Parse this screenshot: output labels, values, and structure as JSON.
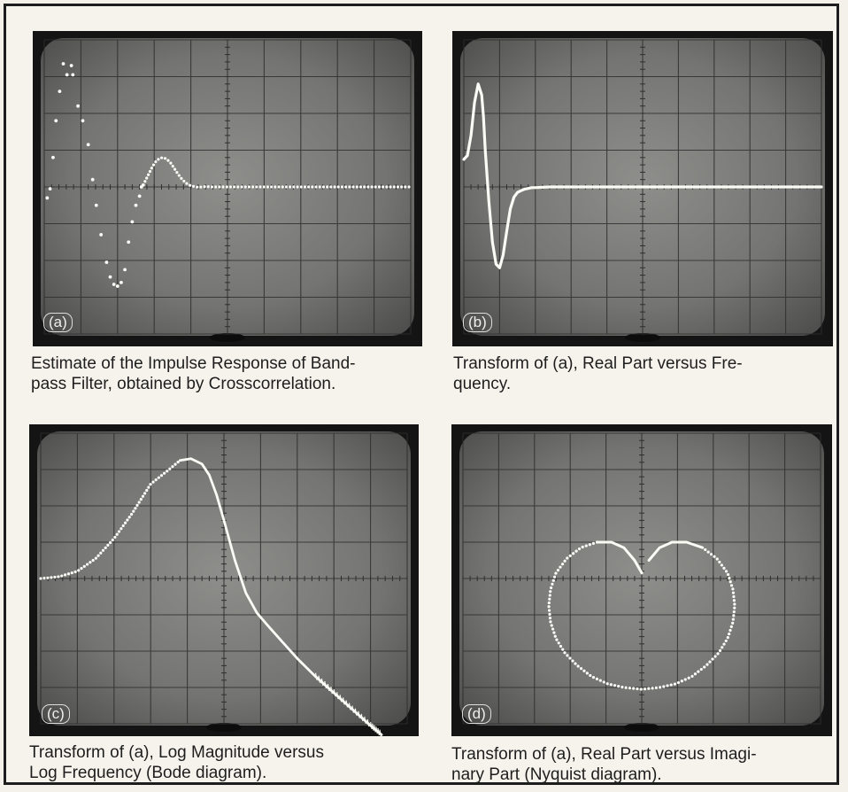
{
  "chart_data": [
    {
      "type": "scatter",
      "panel": "a",
      "label": "(a)",
      "caption": "Estimate of the Impulse Response of Band-\npass Filter, obtained by Crosscorrelation.",
      "grid": true,
      "xlim": [
        0,
        10
      ],
      "ylim": [
        -4,
        4
      ],
      "points": [
        [
          0.08,
          -0.3
        ],
        [
          0.16,
          -0.05
        ],
        [
          0.24,
          0.8
        ],
        [
          0.32,
          1.8
        ],
        [
          0.42,
          2.6
        ],
        [
          0.52,
          3.35
        ],
        [
          0.62,
          3.05
        ],
        [
          0.74,
          3.3
        ],
        [
          0.78,
          3.05
        ],
        [
          0.92,
          2.2
        ],
        [
          1.05,
          1.8
        ],
        [
          1.2,
          1.15
        ],
        [
          1.32,
          0.2
        ],
        [
          1.42,
          -0.5
        ],
        [
          1.55,
          -1.3
        ],
        [
          1.7,
          -2.05
        ],
        [
          1.8,
          -2.45
        ],
        [
          1.9,
          -2.65
        ],
        [
          2.0,
          -2.7
        ],
        [
          2.1,
          -2.6
        ],
        [
          2.2,
          -2.25
        ],
        [
          2.3,
          -1.5
        ],
        [
          2.4,
          -0.95
        ],
        [
          2.5,
          -0.5
        ],
        [
          2.6,
          -0.25
        ],
        [
          2.65,
          0.0
        ],
        [
          2.7,
          0.05
        ]
      ],
      "series": [
        {
          "x": [
            2.75,
            2.85,
            2.95,
            3.05,
            3.15,
            3.25,
            3.35,
            3.45,
            3.55,
            3.65,
            3.75,
            3.85,
            3.95,
            4.05,
            4.2,
            4.4,
            4.6,
            4.8,
            5.0,
            10.0
          ],
          "y": [
            0.15,
            0.35,
            0.55,
            0.7,
            0.78,
            0.8,
            0.75,
            0.65,
            0.5,
            0.35,
            0.22,
            0.12,
            0.05,
            0.02,
            -0.01,
            0.01,
            0.0,
            0.0,
            0.0,
            0.0
          ]
        }
      ]
    },
    {
      "type": "line",
      "panel": "b",
      "label": "(b)",
      "caption": "Transform of (a), Real Part versus Fre-\nquency.",
      "grid": true,
      "xlim": [
        0,
        10
      ],
      "ylim": [
        -4,
        4
      ],
      "x": [
        0,
        0.1,
        0.2,
        0.3,
        0.4,
        0.5,
        0.55,
        0.6,
        0.7,
        0.8,
        0.9,
        1.0,
        1.1,
        1.2,
        1.3,
        1.4,
        1.5,
        1.6,
        1.7,
        1.8,
        1.9,
        2.0,
        2.2,
        2.4,
        2.7,
        3.0,
        4.0,
        6.0,
        10.0
      ],
      "y": [
        0.75,
        0.85,
        1.4,
        2.3,
        2.8,
        2.5,
        1.9,
        1.0,
        -0.4,
        -1.5,
        -2.1,
        -2.2,
        -1.85,
        -1.2,
        -0.6,
        -0.28,
        -0.15,
        -0.1,
        -0.06,
        -0.04,
        -0.02,
        -0.02,
        -0.01,
        0.0,
        0.0,
        0.0,
        0.0,
        0.0,
        0.0
      ]
    },
    {
      "type": "line",
      "panel": "c",
      "label": "(c)",
      "caption": "Transform of (a), Log Magnitude versus\nLog Frequency (Bode diagram).",
      "grid": true,
      "xlim": [
        0,
        10
      ],
      "ylim": [
        -4,
        4
      ],
      "x": [
        0,
        0.5,
        1.0,
        1.5,
        2.0,
        2.5,
        3.0,
        3.5,
        3.8,
        4.1,
        4.4,
        4.6,
        4.8,
        5.0,
        5.3,
        5.6,
        5.9,
        6.2,
        6.6,
        7.0,
        7.5,
        8.0,
        8.5,
        9.0,
        9.3
      ],
      "y": [
        0.0,
        0.05,
        0.2,
        0.55,
        1.1,
        1.8,
        2.6,
        3.0,
        3.25,
        3.3,
        3.15,
        2.85,
        2.3,
        1.6,
        0.5,
        -0.4,
        -0.95,
        -1.3,
        -1.75,
        -2.2,
        -2.7,
        -3.15,
        -3.6,
        -4.05,
        -4.3
      ]
    },
    {
      "type": "scatter",
      "panel": "d",
      "label": "(d)",
      "caption": "Transform of (a), Real Part versus Imagi-\nnary Part (Nyquist diagram).",
      "grid": true,
      "xlim": [
        -5,
        5
      ],
      "ylim": [
        -4,
        4
      ],
      "x": [
        0.0,
        -0.2,
        -0.5,
        -0.85,
        -1.25,
        -1.7,
        -2.1,
        -2.4,
        -2.55,
        -2.6,
        -2.55,
        -2.4,
        -2.15,
        -1.8,
        -1.4,
        -0.95,
        -0.5,
        0.0,
        0.5,
        0.95,
        1.4,
        1.8,
        2.15,
        2.4,
        2.55,
        2.6,
        2.55,
        2.4,
        2.1,
        1.7,
        1.25,
        0.85,
        0.5,
        0.2,
        0.9
      ],
      "y": [
        0.15,
        0.5,
        0.85,
        1.0,
        1.0,
        0.85,
        0.55,
        0.15,
        -0.3,
        -0.75,
        -1.2,
        -1.65,
        -2.05,
        -2.4,
        -2.7,
        -2.9,
        -3.0,
        -3.05,
        -3.0,
        -2.9,
        -2.7,
        -2.4,
        -2.05,
        -1.65,
        -1.2,
        -0.75,
        -0.3,
        0.15,
        0.55,
        0.85,
        1.0,
        1.0,
        0.85,
        0.5,
        0.15
      ]
    }
  ],
  "colors": {
    "screen_center": "#8e8e8b",
    "screen_edge": "#4d4d4c",
    "bezel": "#141414",
    "grid": "#2f2f2f",
    "trace": "#fbfbf6"
  }
}
